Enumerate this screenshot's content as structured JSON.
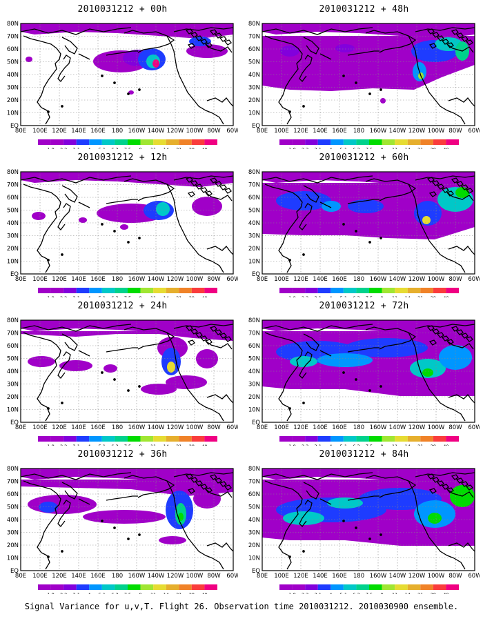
{
  "panels": [
    {
      "title": "2010031212 + 00h",
      "col": 0,
      "row": 0
    },
    {
      "title": "2010031212 + 48h",
      "col": 1,
      "row": 0
    },
    {
      "title": "2010031212 + 12h",
      "col": 0,
      "row": 1
    },
    {
      "title": "2010031212 + 60h",
      "col": 1,
      "row": 1
    },
    {
      "title": "2010031212 + 24h",
      "col": 0,
      "row": 2
    },
    {
      "title": "2010031212 + 72h",
      "col": 1,
      "row": 2
    },
    {
      "title": "2010031212 + 36h",
      "col": 0,
      "row": 3
    },
    {
      "title": "2010031212 + 84h",
      "col": 1,
      "row": 3
    }
  ],
  "lon_labels": [
    "80E",
    "100E",
    "120E",
    "140E",
    "160E",
    "180",
    "160W",
    "140W",
    "120W",
    "100W",
    "80W",
    "60W"
  ],
  "lat_labels": [
    "80N",
    "70N",
    "60N",
    "50N",
    "40N",
    "30N",
    "20N",
    "10N",
    "EQ"
  ],
  "colorbar": {
    "labels": [
      "1.8",
      "2.2",
      "3.1",
      "4",
      "5.1",
      "6.3",
      "7.5",
      "9",
      "11",
      "14",
      "21",
      "29",
      "40"
    ],
    "colors": [
      "#a000c8",
      "#8200dc",
      "#1e3cff",
      "#0096ff",
      "#00c8c8",
      "#00d28c",
      "#00dc00",
      "#a0e632",
      "#e6dc32",
      "#e6af2d",
      "#f08228",
      "#fa3c3c",
      "#f00082"
    ]
  },
  "footer": "Signal Variance for u,v,T. Flight 26. Observation time 2010031212. 2010030900 ensemble."
}
